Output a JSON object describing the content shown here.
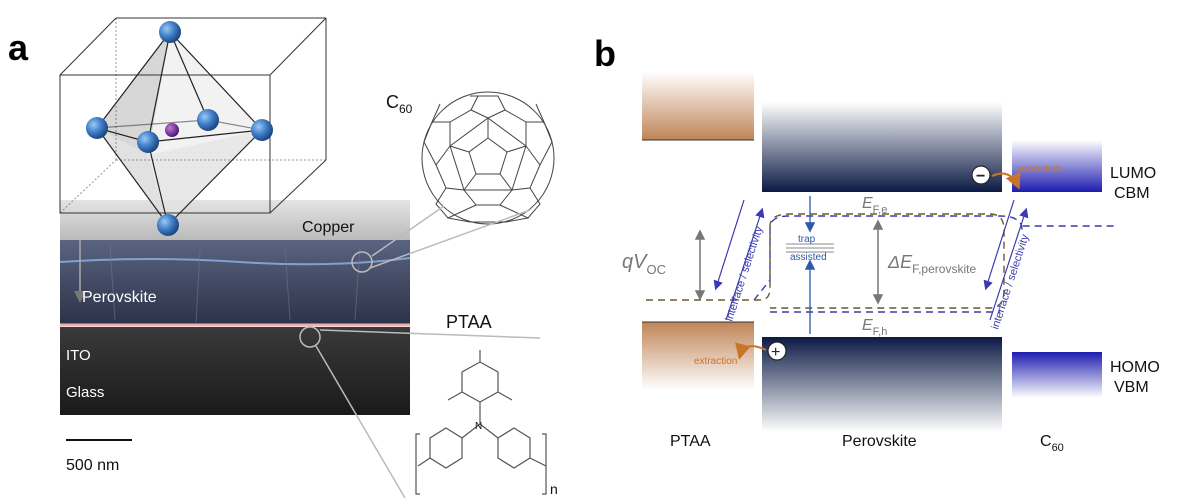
{
  "panel_a": {
    "letter": "a",
    "layer_copper": "Copper",
    "layer_perovskite": "Perovskite",
    "layer_ito": "ITO",
    "layer_glass": "Glass",
    "c60_label": "C",
    "c60_sub": "60",
    "ptaa_label": "PTAA",
    "ptaa_n": "n",
    "ptaa_n_atom": "N",
    "scale_bar": "500 nm"
  },
  "panel_b": {
    "letter": "b",
    "qvoc_main": "qV",
    "qvoc_sub": "OC",
    "efe_main": "E",
    "efe_sub": "F,e",
    "efh_main": "E",
    "efh_sub": "F,h",
    "delta_main": "ΔE",
    "delta_sub": "F,perovskite",
    "interface_left": "interface / selectivity",
    "interface_right": "interface / selectivity",
    "trap_line1": "trap",
    "trap_line2": "assisted",
    "extraction_left": "extraction",
    "extraction_right": "extraction",
    "lumo": "LUMO",
    "cbm": "CBM",
    "homo": "HOMO",
    "vbm": "VBM",
    "bottom_ptaa": "PTAA",
    "bottom_perovskite": "Perovskite",
    "bottom_c60": "C",
    "bottom_c60_sub": "60",
    "minus_sign": "−",
    "plus_sign": "+"
  },
  "colors": {
    "ptaa_band": "#c08457",
    "perovskite_band": "#0b1a45",
    "c60_band": "#1d1bb0",
    "fermi_dash": "#6b5a2a",
    "blue_dash": "#3a3ab0",
    "arrow_blue": "#2a5aa8",
    "extraction": "#c8742a",
    "grey_text": "#777777"
  }
}
